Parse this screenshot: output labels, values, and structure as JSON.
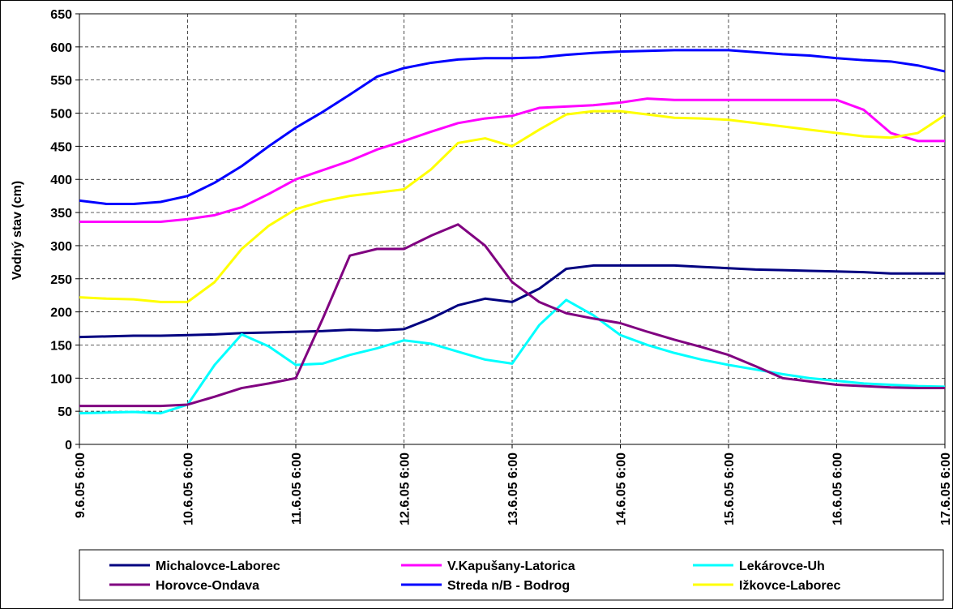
{
  "chart_data": {
    "type": "line",
    "y_label": "Vodný stav (cm)",
    "categories": [
      "9.6.05 6:00",
      null,
      null,
      null,
      "10.6.05 6:00",
      null,
      null,
      null,
      "11.6.05 6:00",
      null,
      null,
      null,
      "12.6.05 6:00",
      null,
      null,
      null,
      "13.6.05 6:00",
      null,
      null,
      null,
      "14.6.05 6:00",
      null,
      null,
      null,
      "15.6.05 6:00",
      null,
      null,
      null,
      "16.6.05 6:00",
      null,
      null,
      null,
      "17.6.05 6:00"
    ],
    "series": [
      {
        "name": "Michalovce-Laborec",
        "color": "#000080",
        "values": [
          162,
          163,
          164,
          164,
          165,
          166,
          168,
          169,
          170,
          171,
          173,
          172,
          174,
          190,
          210,
          220,
          215,
          235,
          265,
          270,
          270,
          270,
          270,
          268,
          266,
          264,
          263,
          262,
          261,
          260,
          258,
          258,
          258
        ]
      },
      {
        "name": "V.Kapušany-Latorica",
        "color": "#ff00ff",
        "values": [
          336,
          336,
          336,
          336,
          340,
          346,
          358,
          378,
          400,
          414,
          428,
          445,
          458,
          472,
          485,
          492,
          496,
          508,
          510,
          512,
          516,
          522,
          520,
          520,
          520,
          520,
          520,
          520,
          520,
          505,
          470,
          458,
          458
        ]
      },
      {
        "name": "Lekárovce-Uh",
        "color": "#00ffff",
        "values": [
          47,
          48,
          49,
          47,
          60,
          120,
          166,
          148,
          120,
          122,
          135,
          145,
          157,
          152,
          140,
          128,
          122,
          180,
          218,
          195,
          165,
          150,
          138,
          128,
          120,
          113,
          106,
          100,
          96,
          92,
          90,
          88,
          87
        ]
      },
      {
        "name": "Horovce-Ondava",
        "color": "#800080",
        "values": [
          58,
          58,
          58,
          58,
          60,
          72,
          85,
          92,
          100,
          190,
          285,
          295,
          295,
          315,
          332,
          300,
          245,
          215,
          198,
          190,
          183,
          170,
          158,
          147,
          135,
          118,
          100,
          95,
          90,
          88,
          86,
          85,
          85
        ]
      },
      {
        "name": "Streda n/B - Bodrog",
        "color": "#0000ff",
        "values": [
          368,
          363,
          363,
          366,
          375,
          395,
          420,
          450,
          478,
          502,
          528,
          555,
          568,
          576,
          581,
          583,
          583,
          584,
          588,
          591,
          593,
          594,
          595,
          595,
          595,
          592,
          589,
          587,
          583,
          580,
          578,
          572,
          563
        ]
      },
      {
        "name": "Ižkovce-Laborec",
        "color": "#ffff00",
        "values": [
          222,
          220,
          219,
          215,
          215,
          245,
          295,
          330,
          355,
          367,
          375,
          380,
          385,
          415,
          455,
          462,
          450,
          475,
          498,
          503,
          503,
          498,
          493,
          492,
          490,
          485,
          480,
          475,
          470,
          465,
          463,
          470,
          497
        ]
      }
    ],
    "ylim": [
      0,
      650
    ],
    "yticks": [
      0,
      50,
      100,
      150,
      200,
      250,
      300,
      350,
      400,
      450,
      500,
      550,
      600,
      650
    ],
    "grid": true,
    "legend": "bottom"
  }
}
